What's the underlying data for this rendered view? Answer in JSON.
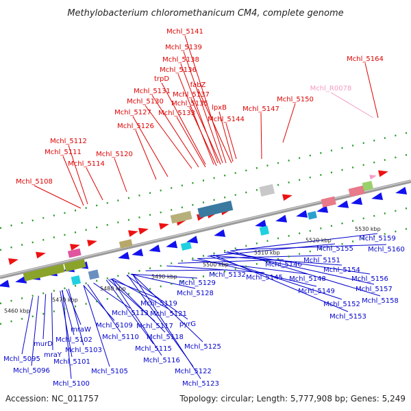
{
  "title": "Methylobacterium chloromethanicum CM4, complete genome",
  "footer": {
    "accession": "Accession: NC_011757",
    "summary": "Topology: circular; Length: 5,777,908 bp; Genes: 5,249"
  },
  "colors": {
    "top_label": "#dd0000",
    "bottom_label": "#0000cc",
    "pink_label": "#f49ac2",
    "backbone": "#9a9a9a",
    "dotted_track": "#2a9a2a"
  },
  "ticks": [
    "5460 kbp",
    "5470 kbp",
    "5480 kbp",
    "5490 kbp",
    "5500 kbp",
    "5510 kbp",
    "5520 kbp",
    "5530 kbp"
  ],
  "top_labels": [
    "Mchl_5141",
    "Mchl_5139",
    "Mchl_5138",
    "Mchl_5136",
    "trpD",
    "fabZ",
    "Mchl_5137",
    "Mchl_5131",
    "Mchl_5130",
    "Mchl_5135",
    "lpxB",
    "Mchl_5127",
    "Mchl_5133",
    "Mchl_5144",
    "Mchl_5126",
    "Mchl_5112",
    "Mchl_5111",
    "Mchl_5114",
    "Mchl_5120",
    "Mchl_5108",
    "Mchl_5147",
    "Mchl_5150",
    "Mchl_5164",
    "Mchl_R0078"
  ],
  "bottom_labels": [
    "Mchl_5095",
    "Mchl_5096",
    "murD",
    "mraY",
    "Mchl_5100",
    "Mchl_5101",
    "Mchl_5102",
    "mraW",
    "Mchl_5103",
    "Mchl_5105",
    "Mchl_5109",
    "Mchl_5110",
    "Mchl_5113",
    "Mchl_5119",
    "Mchl_5117",
    "Mchl_5121",
    "Mchl_5118",
    "Mchl_5115",
    "Mchl_5116",
    "pyrG",
    "Mchl_5125",
    "Mchl_5122",
    "Mchl_5123",
    "Mchl_5129",
    "Mchl_5128",
    "Mchl_5132",
    "Mchl_5145",
    "Mchl_5146",
    "Mchl_5148",
    "Mchl_5149",
    "Mchl_5151",
    "Mchl_5152",
    "Mchl_5153",
    "Mchl_5154",
    "Mchl_5155",
    "Mchl_5156",
    "Mchl_5157",
    "Mchl_5158",
    "Mchl_5159",
    "Mchl_5160"
  ]
}
